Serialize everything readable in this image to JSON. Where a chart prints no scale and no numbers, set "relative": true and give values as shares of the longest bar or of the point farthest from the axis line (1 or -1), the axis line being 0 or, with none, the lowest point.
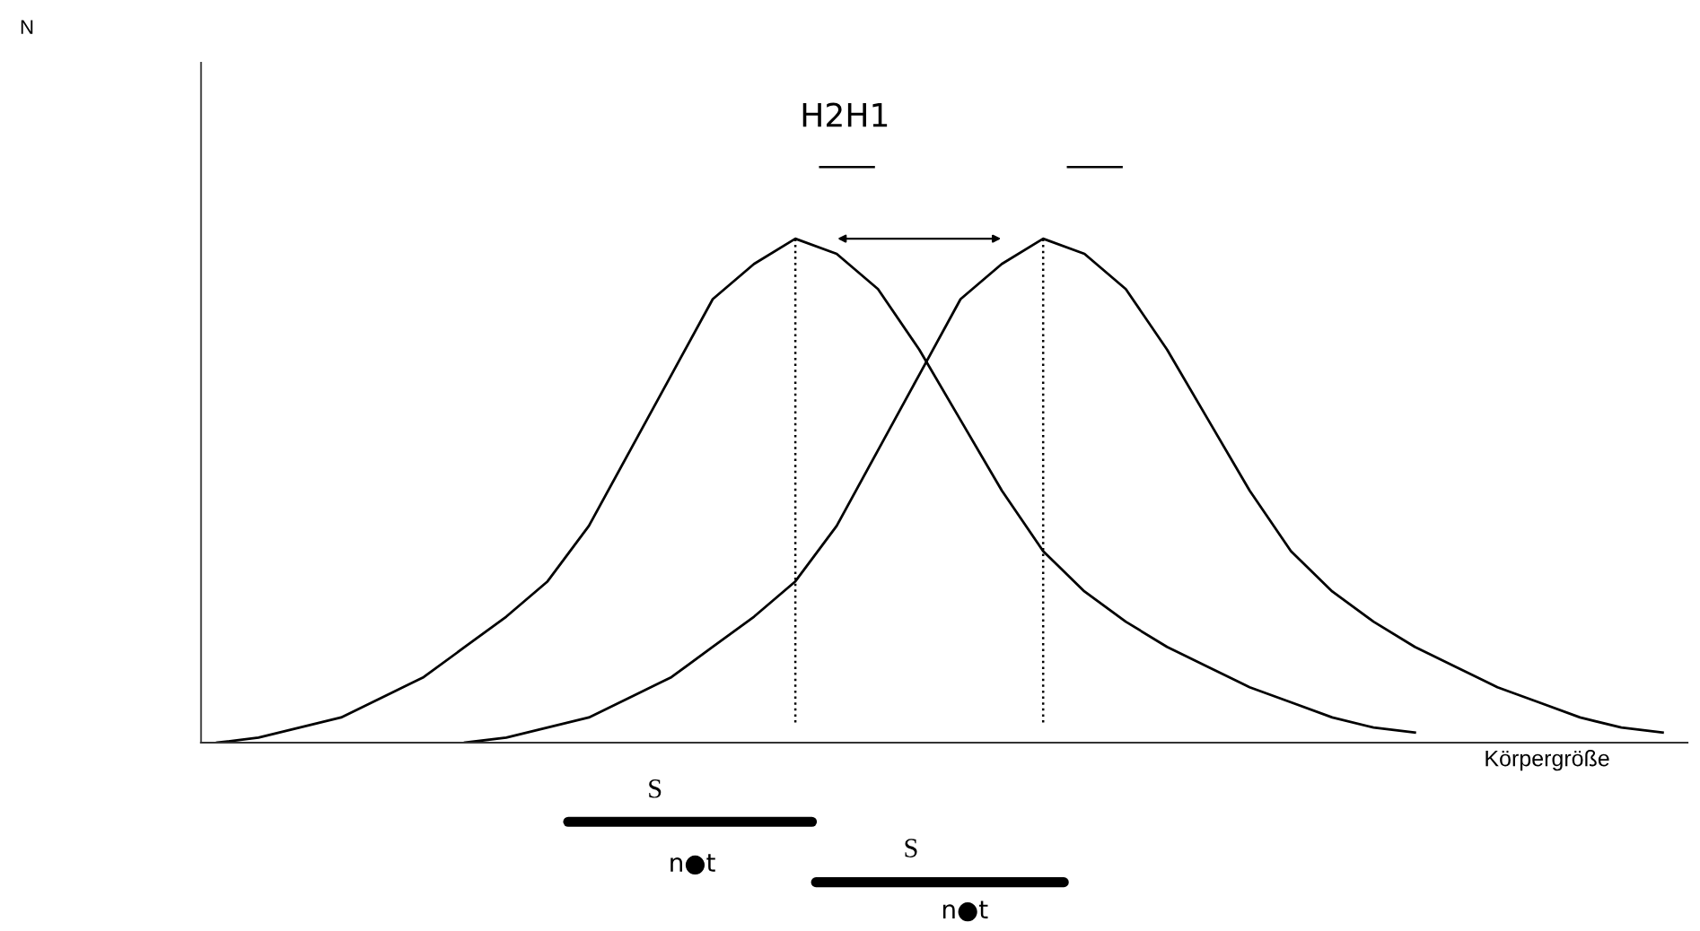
{
  "chart_data": {
    "type": "line",
    "relative": true,
    "xlabel": "Körpergröße",
    "marker": "none",
    "line_style": "solid",
    "categories": [
      null,
      null,
      null,
      null,
      null,
      null,
      null,
      null,
      null,
      null,
      null,
      null,
      null,
      null,
      null,
      null,
      null,
      null,
      null,
      null,
      null,
      null,
      null,
      null,
      null,
      null,
      null,
      null,
      null,
      null,
      null,
      null,
      null,
      null,
      null,
      null
    ],
    "series": [
      {
        "color": "#000000",
        "values": [
          0,
          0.01,
          0.03,
          0.05,
          0.09,
          0.13,
          0.19,
          0.25,
          0.32,
          0.43,
          0.58,
          0.73,
          0.88,
          0.95,
          1,
          0.97,
          0.9,
          0.78,
          0.64,
          0.5,
          0.38,
          0.3,
          0.24,
          0.19,
          0.15,
          0.11,
          0.08,
          0.05,
          0.03,
          0.02,
          null,
          null,
          null,
          null,
          null,
          null
        ]
      },
      {
        "color": "#000000",
        "values": [
          null,
          null,
          null,
          null,
          null,
          null,
          0,
          0.01,
          0.03,
          0.05,
          0.09,
          0.13,
          0.19,
          0.25,
          0.32,
          0.43,
          0.58,
          0.73,
          0.88,
          0.95,
          1,
          0.97,
          0.9,
          0.78,
          0.64,
          0.5,
          0.38,
          0.3,
          0.24,
          0.19,
          0.15,
          0.11,
          0.08,
          0.05,
          0.03,
          0.02
        ]
      }
    ],
    "annotations": [
      "H2H1",
      "S",
      "S",
      "n●t",
      "n●t",
      "N"
    ]
  }
}
